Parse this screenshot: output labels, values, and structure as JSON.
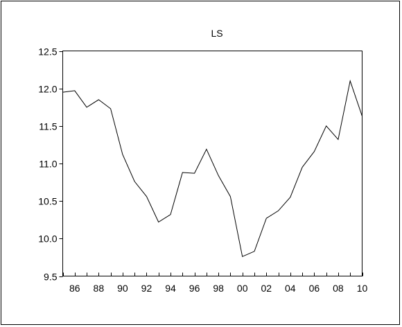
{
  "chart_data": {
    "type": "line",
    "title": "LS",
    "xlabel": "",
    "ylabel": "",
    "xlim": [
      1985,
      2010
    ],
    "ylim": [
      9.5,
      12.5
    ],
    "grid": false,
    "legend": "none",
    "line_color": "#000000",
    "x_tick_labels": [
      "86",
      "88",
      "90",
      "92",
      "94",
      "96",
      "98",
      "00",
      "02",
      "04",
      "06",
      "08",
      "10"
    ],
    "x_tick_values": [
      1986,
      1988,
      1990,
      1992,
      1994,
      1996,
      1998,
      2000,
      2002,
      2004,
      2006,
      2008,
      2010
    ],
    "y_tick_labels": [
      "9.5",
      "10.0",
      "10.5",
      "11.0",
      "11.5",
      "12.0",
      "12.5"
    ],
    "y_tick_values": [
      9.5,
      10.0,
      10.5,
      11.0,
      11.5,
      12.0,
      12.5
    ],
    "x": [
      1985,
      1986,
      1987,
      1988,
      1989,
      1990,
      1991,
      1992,
      1993,
      1994,
      1995,
      1996,
      1997,
      1998,
      1999,
      2000,
      2001,
      2002,
      2003,
      2004,
      2005,
      2006,
      2007,
      2008,
      2009,
      2010
    ],
    "y": [
      11.95,
      11.97,
      11.75,
      11.85,
      11.73,
      11.12,
      10.76,
      10.56,
      10.22,
      10.32,
      10.88,
      10.87,
      11.19,
      10.84,
      10.56,
      9.76,
      9.83,
      10.27,
      10.37,
      10.55,
      10.95,
      11.16,
      11.5,
      11.32,
      12.1,
      11.63
    ]
  }
}
